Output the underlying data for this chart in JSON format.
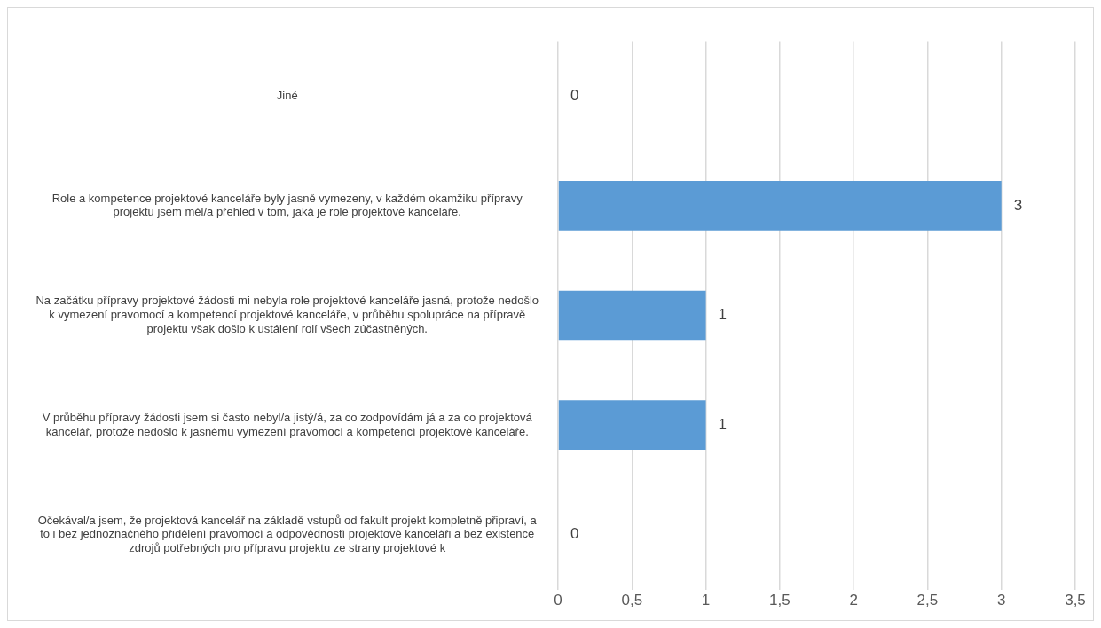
{
  "chart_data": {
    "type": "bar",
    "orientation": "horizontal",
    "categories": [
      "Jiné",
      "Role a kompetence projektové kanceláře byly jasně vymezeny, v každém okamžiku přípravy projektu jsem měl/a přehled v tom, jaká je role projektové kanceláře.",
      "Na začátku přípravy projektové žádosti mi nebyla role projektové kanceláře jasná, protože nedošlo k vymezení pravomocí a kompetencí projektové kanceláře, v průběhu spolupráce na přípravě projektu však došlo k ustálení rolí všech zúčastněných.",
      "V průběhu přípravy žádosti jsem si často nebyl/a jistý/á, za co zodpovídám já a za co projektová kancelář, protože nedošlo k jasnému vymezení pravomocí a kompetencí projektové kanceláře.",
      "Očekával/a jsem, že projektová kancelář na základě vstupů od fakult projekt kompletně připraví, a to i bez jednoznačného přidělení pravomocí a odpovědností projektové kanceláři a bez existence zdrojů potřebných pro přípravu projektu ze strany projektové k"
    ],
    "values": [
      0,
      3,
      1,
      1,
      0
    ],
    "color": "#5b9bd5",
    "xlim": [
      0,
      3.5
    ],
    "xticks": [
      0,
      {
        "value": 0.5,
        "label": "0,5"
      },
      1,
      {
        "value": 1.5,
        "label": "1,5"
      },
      2,
      {
        "value": 2.5,
        "label": "2,5"
      },
      3,
      {
        "value": 3.5,
        "label": "3,5"
      }
    ],
    "grid": "x",
    "data_labels": true,
    "legend": false
  }
}
